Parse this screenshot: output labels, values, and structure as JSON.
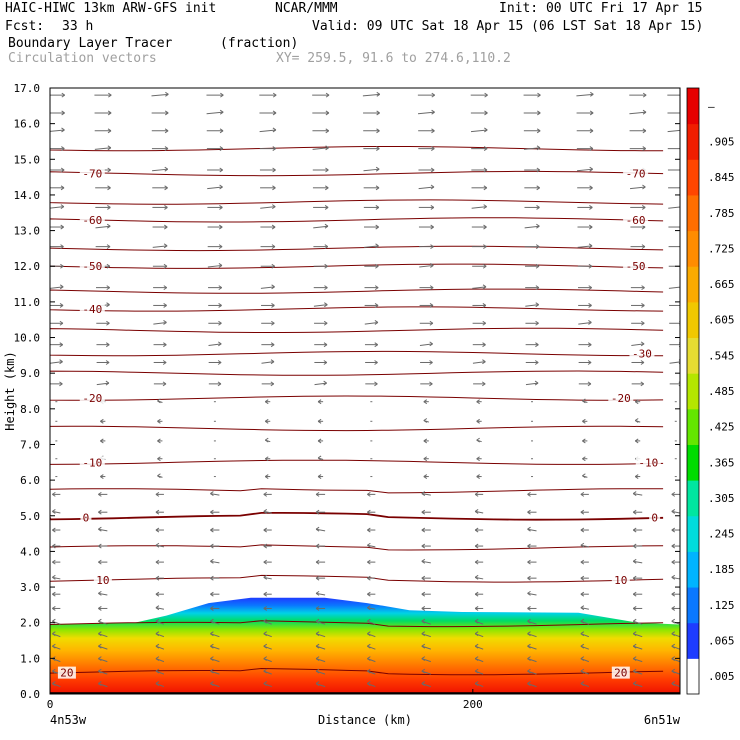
{
  "header": {
    "model": "HAIC-HIWC 13km ARW-GFS init",
    "org": "NCAR/MMM",
    "init": "Init: 00 UTC Fri 17 Apr 15",
    "fcst_label": "Fcst:",
    "fcst_value": "33 h",
    "valid": "Valid: 09 UTC Sat 18 Apr 15 (06 LST Sat 18 Apr 15)",
    "field": "Boundary Layer Tracer",
    "field_units": "(fraction)",
    "overlay": "Circulation vectors",
    "xy": "XY= 259.5, 91.6 to 274.6,110.2"
  },
  "chart_data": {
    "type": "heatmap",
    "title": "Boundary Layer Tracer (fraction)",
    "xlabel": "Distance (km)",
    "ylabel": "Height (km)",
    "xlim": [
      0,
      298
    ],
    "ylim": [
      0,
      17
    ],
    "x_ticks": [
      0,
      200
    ],
    "x_end_labels": [
      "4n53w",
      "6n51w"
    ],
    "y_ticks": [
      "0.0",
      "1.0",
      "2.0",
      "3.0",
      "4.0",
      "5.0",
      "6.0",
      "7.0",
      "8.0",
      "9.0",
      "10.0",
      "11.0",
      "12.0",
      "13.0",
      "14.0",
      "15.0",
      "16.0",
      "17.0"
    ],
    "colorbar_labels": [
      ".005",
      ".065",
      ".125",
      ".185",
      ".245",
      ".305",
      ".365",
      ".425",
      ".485",
      ".545",
      ".605",
      ".665",
      ".725",
      ".785",
      ".845",
      ".905",
      "–"
    ],
    "colorbar_colors": [
      "#ffffff",
      "#1e3cff",
      "#0a78ff",
      "#00b4ff",
      "#00dcdc",
      "#00e6a0",
      "#00dc00",
      "#64e600",
      "#b4e600",
      "#e6dc32",
      "#f0c800",
      "#faaa00",
      "#ff8c00",
      "#ff6e00",
      "#ff4600",
      "#f01e00",
      "#e60000"
    ],
    "tracer_top_km": [
      [
        0,
        1.95
      ],
      [
        40,
        2.0
      ],
      [
        55,
        2.2
      ],
      [
        75,
        2.55
      ],
      [
        95,
        2.7
      ],
      [
        130,
        2.7
      ],
      [
        150,
        2.55
      ],
      [
        170,
        2.35
      ],
      [
        195,
        2.3
      ],
      [
        250,
        2.28
      ],
      [
        278,
        2.0
      ],
      [
        298,
        1.95
      ]
    ],
    "temperature_contours": [
      {
        "label": "-70",
        "z": 14.6,
        "label_x": [
          20,
          277
        ]
      },
      {
        "label": "-60",
        "z": 13.3,
        "label_x": [
          20,
          277
        ]
      },
      {
        "label": "-50",
        "z": 12.0,
        "label_x": [
          20,
          277
        ]
      },
      {
        "label": "-40",
        "z": 10.8,
        "label_x": [
          20
        ]
      },
      {
        "label": "-30",
        "z": 9.55,
        "label_x": [
          280
        ]
      },
      {
        "label": "-20",
        "z": 8.3,
        "label_x": [
          20,
          270
        ]
      },
      {
        "label": "-10",
        "z": 6.5,
        "label_x": [
          20,
          283
        ]
      },
      {
        "label": "0",
        "z": 4.95,
        "label_x": [
          17,
          286
        ]
      },
      {
        "label": "10",
        "z": 3.2,
        "label_x": [
          25,
          270
        ]
      },
      {
        "label": "20",
        "z": 0.6,
        "label_x": [
          8,
          270
        ]
      }
    ],
    "unlabeled_contour_levels_km": [
      1.95,
      4.1,
      5.7,
      7.45,
      9.0,
      10.2,
      11.3,
      12.5,
      13.8,
      15.3
    ],
    "vector_rows_km": [
      0.25,
      0.6,
      0.95,
      1.3,
      1.65,
      2.0,
      2.4,
      2.8,
      3.25,
      3.7,
      4.15,
      4.6,
      5.1,
      5.6,
      6.1,
      6.6,
      7.1,
      7.65,
      8.2,
      8.7,
      9.3,
      9.8,
      10.4,
      10.9,
      11.4,
      12.0,
      12.55,
      13.1,
      13.65,
      14.2,
      14.7,
      15.3,
      15.8,
      16.3,
      16.8
    ],
    "vector_cols_km": [
      3,
      25,
      52,
      78,
      103,
      128,
      152,
      178,
      203,
      228,
      253,
      278,
      296
    ]
  }
}
